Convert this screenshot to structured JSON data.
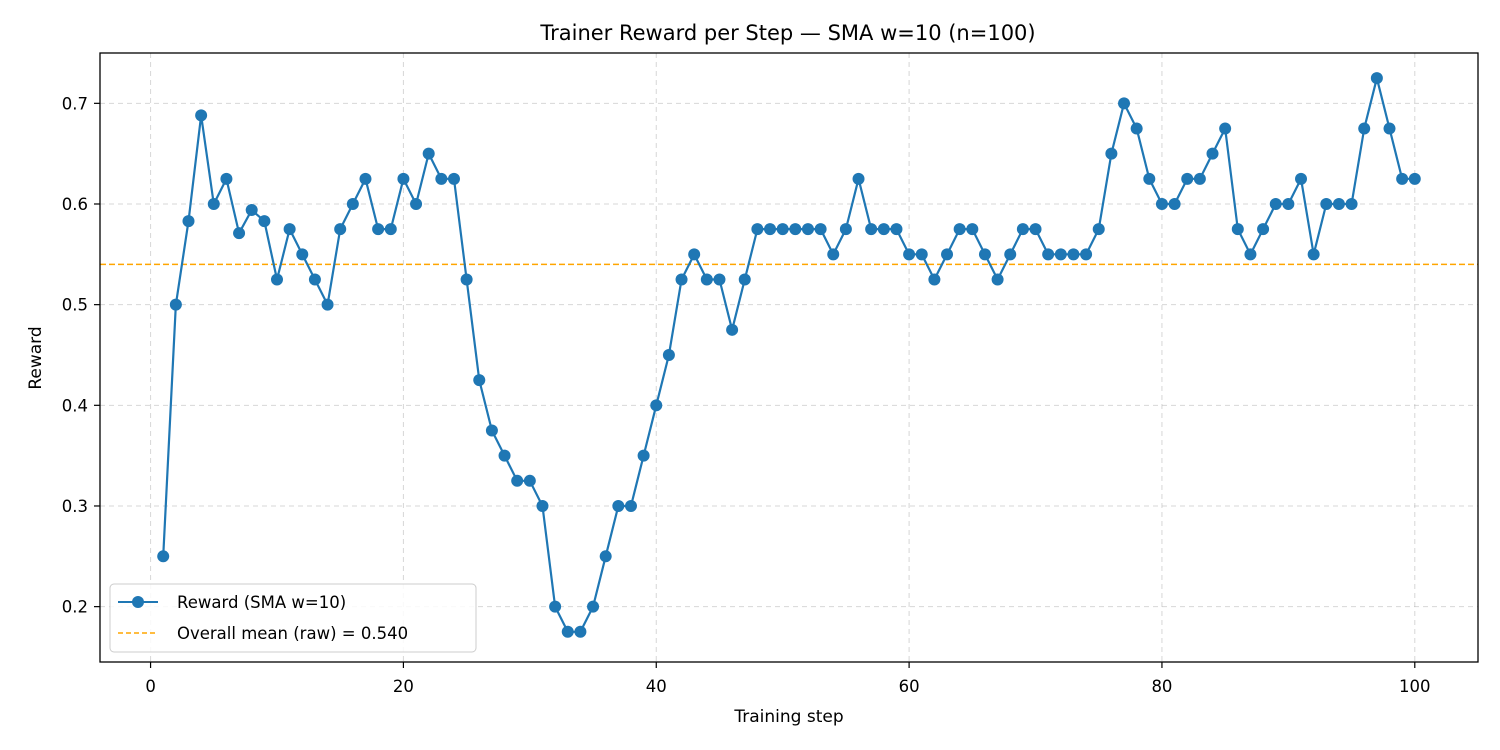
{
  "chart_data": {
    "type": "line",
    "title": "Trainer Reward per Step — SMA w=10 (n=100)",
    "xlabel": "Training step",
    "ylabel": "Reward",
    "xlim": [
      -4,
      105
    ],
    "ylim": [
      0.145,
      0.75
    ],
    "xticks": [
      0,
      20,
      40,
      60,
      80,
      100
    ],
    "yticks": [
      0.2,
      0.3,
      0.4,
      0.5,
      0.6,
      0.7
    ],
    "xtick_labels": [
      "0",
      "20",
      "40",
      "60",
      "80",
      "100"
    ],
    "ytick_labels": [
      "0.2",
      "0.3",
      "0.4",
      "0.5",
      "0.6",
      "0.7"
    ],
    "grid": true,
    "legend_position": "lower-left",
    "series": [
      {
        "name": "Reward (SMA w=10)",
        "color": "#1f77b4",
        "marker": "circle",
        "x": [
          1,
          2,
          3,
          4,
          5,
          6,
          7,
          8,
          9,
          10,
          11,
          12,
          13,
          14,
          15,
          16,
          17,
          18,
          19,
          20,
          21,
          22,
          23,
          24,
          25,
          26,
          27,
          28,
          29,
          30,
          31,
          32,
          33,
          34,
          35,
          36,
          37,
          38,
          39,
          40,
          41,
          42,
          43,
          44,
          45,
          46,
          47,
          48,
          49,
          50,
          51,
          52,
          53,
          54,
          55,
          56,
          57,
          58,
          59,
          60,
          61,
          62,
          63,
          64,
          65,
          66,
          67,
          68,
          69,
          70,
          71,
          72,
          73,
          74,
          75,
          76,
          77,
          78,
          79,
          80,
          81,
          82,
          83,
          84,
          85,
          86,
          87,
          88,
          89,
          90,
          91,
          92,
          93,
          94,
          95,
          96,
          97,
          98,
          99,
          100
        ],
        "values": [
          0.25,
          0.5,
          0.583,
          0.688,
          0.6,
          0.625,
          0.571,
          0.594,
          0.583,
          0.525,
          0.575,
          0.55,
          0.525,
          0.5,
          0.575,
          0.6,
          0.625,
          0.575,
          0.575,
          0.625,
          0.6,
          0.65,
          0.625,
          0.625,
          0.525,
          0.425,
          0.375,
          0.35,
          0.325,
          0.325,
          0.3,
          0.2,
          0.175,
          0.175,
          0.2,
          0.25,
          0.3,
          0.3,
          0.35,
          0.4,
          0.45,
          0.525,
          0.55,
          0.525,
          0.525,
          0.475,
          0.525,
          0.575,
          0.575,
          0.575,
          0.575,
          0.575,
          0.575,
          0.55,
          0.575,
          0.625,
          0.575,
          0.575,
          0.575,
          0.55,
          0.55,
          0.525,
          0.55,
          0.575,
          0.575,
          0.55,
          0.525,
          0.55,
          0.575,
          0.575,
          0.55,
          0.55,
          0.55,
          0.55,
          0.575,
          0.65,
          0.7,
          0.675,
          0.625,
          0.6,
          0.6,
          0.625,
          0.625,
          0.65,
          0.675,
          0.575,
          0.55,
          0.575,
          0.6,
          0.6,
          0.625,
          0.55,
          0.6,
          0.6,
          0.6,
          0.675,
          0.725,
          0.675,
          0.625,
          0.625
        ]
      },
      {
        "name": "Overall mean (raw) = 0.540",
        "type": "hline",
        "color": "#ffa500",
        "line_style": "dashed",
        "value": 0.54
      }
    ]
  }
}
